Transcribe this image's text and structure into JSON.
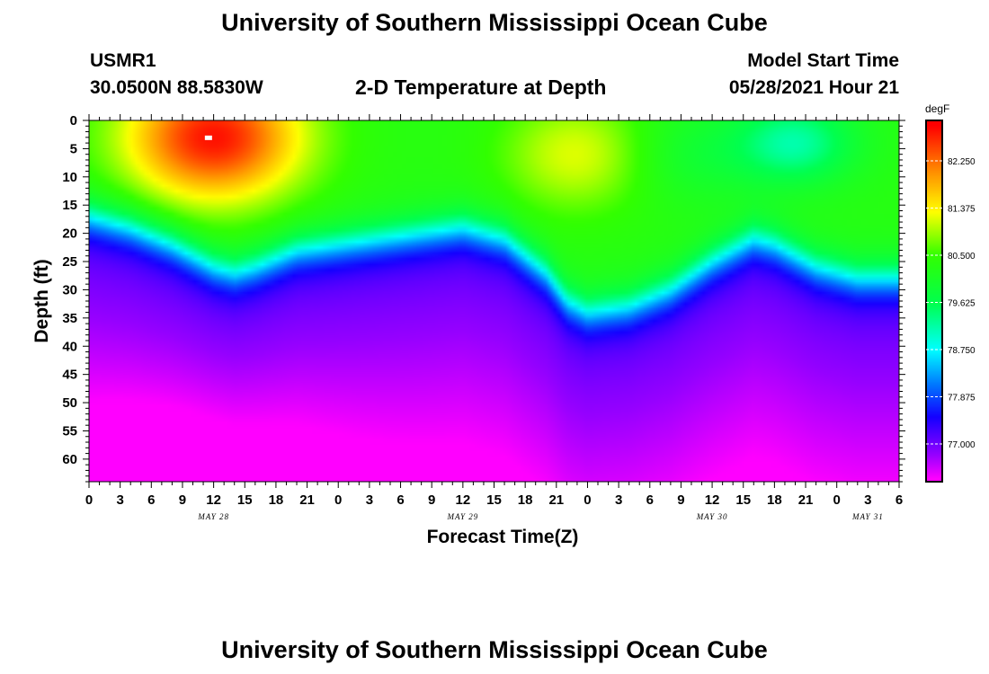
{
  "page": {
    "title_top": "University of Southern Mississippi Ocean Cube",
    "title_bottom": "University of Southern Mississippi Ocean Cube",
    "station_id": "USMR1",
    "station_coords": "30.0500N  88.5830W",
    "model_label": "Model Start Time",
    "model_time": "05/28/2021 Hour 21"
  },
  "chart_data": {
    "type": "heatmap",
    "title": "2-D Temperature at Depth",
    "xlabel": "Forecast Time(Z)",
    "ylabel": "Depth (ft)",
    "x_range_hours": [
      0,
      78
    ],
    "y_range_ft": [
      0,
      64
    ],
    "y_inverted": true,
    "x_tick_labels": [
      "0",
      "3",
      "6",
      "9",
      "12",
      "15",
      "18",
      "21",
      "0",
      "3",
      "6",
      "9",
      "12",
      "15",
      "18",
      "21",
      "0",
      "3",
      "6",
      "9",
      "12",
      "15",
      "18",
      "21",
      "0",
      "3",
      "6"
    ],
    "y_tick_labels": [
      "0",
      "5",
      "10",
      "15",
      "20",
      "25",
      "30",
      "35",
      "40",
      "45",
      "50",
      "55",
      "60"
    ],
    "date_labels": [
      {
        "label": "MAY 28",
        "hour": 12
      },
      {
        "label": "MAY 29",
        "hour": 36
      },
      {
        "label": "MAY 30",
        "hour": 60
      },
      {
        "label": "MAY 31",
        "hour": 75
      }
    ],
    "colorbar": {
      "unit": "degF",
      "min": 76.3,
      "max": 83.0,
      "tick_values": [
        82.25,
        81.375,
        80.5,
        79.625,
        78.75,
        77.875,
        77.0
      ],
      "tick_labels": [
        "82.250",
        "81.375",
        "80.500",
        "79.625",
        "78.750",
        "77.875",
        "77.000"
      ]
    },
    "thermocline_depth_ft": {
      "hours": [
        0,
        4,
        8,
        12,
        14,
        16,
        20,
        24,
        28,
        32,
        36,
        40,
        44,
        46,
        48,
        52,
        56,
        60,
        64,
        66,
        70,
        74,
        78
      ],
      "depth": [
        17,
        19,
        22,
        26,
        27,
        26,
        23,
        22,
        21,
        20,
        19,
        21,
        27,
        32,
        34,
        33,
        30,
        25,
        21,
        22,
        26,
        28,
        28
      ]
    },
    "warm_core": {
      "hour": 12,
      "depth_ft": 3,
      "peak_degF": 82.8
    },
    "max_marker": {
      "hour": 11.5,
      "depth_ft": 3
    }
  }
}
